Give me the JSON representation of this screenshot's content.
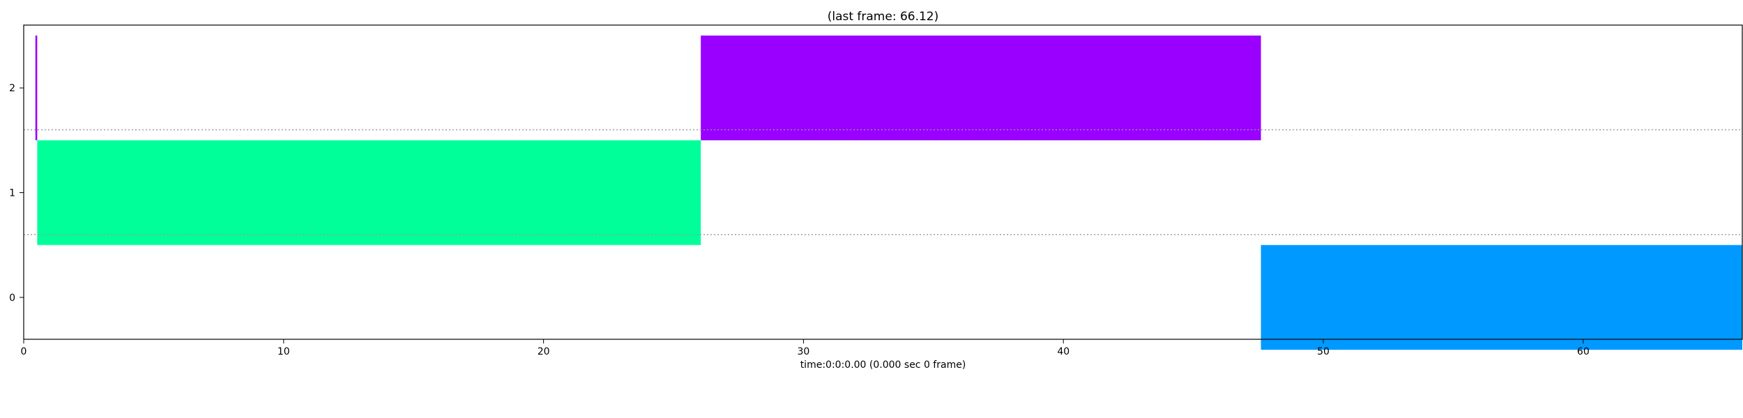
{
  "chart_data": {
    "type": "bar",
    "orientation": "horizontal-timeline",
    "title": "(last frame: 66.12)",
    "subtitle": "",
    "xlabel": "time:0:0:0.00 (0.000 sec 0 frame)",
    "ylabel": "",
    "xlim": [
      0,
      66.12
    ],
    "ylim": [
      -0.4,
      2.6
    ],
    "x_ticks": [
      0,
      10,
      20,
      30,
      40,
      50,
      60
    ],
    "y_ticks": [
      0,
      1,
      2
    ],
    "grid": "dotted horizontal separators at 0.6 and 1.6",
    "separators": [
      0.6,
      1.6
    ],
    "legend": "none",
    "segments": [
      {
        "track": 2,
        "start": 0.45,
        "end": 0.52,
        "color": "#9900ff"
      },
      {
        "track": 1,
        "start": 0.52,
        "end": 26.05,
        "color": "#00ff99"
      },
      {
        "track": 2,
        "start": 26.05,
        "end": 47.6,
        "color": "#9900ff"
      },
      {
        "track": 0,
        "start": 47.6,
        "end": 66.12,
        "color": "#0099ff"
      }
    ]
  }
}
